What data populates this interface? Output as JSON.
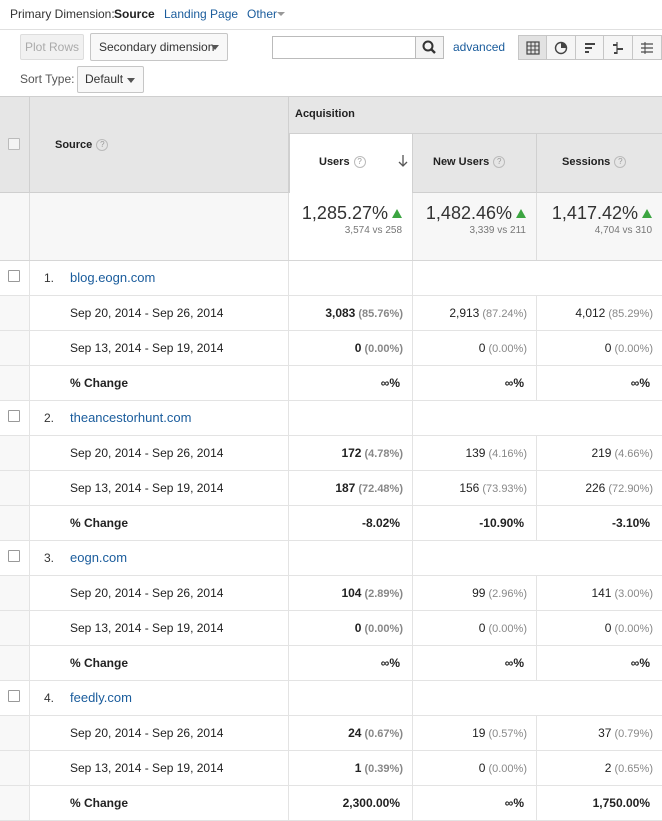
{
  "dimension_bar": {
    "label": "Primary Dimension:",
    "current": "Source",
    "options": [
      "Landing Page",
      "Other"
    ]
  },
  "toolbar": {
    "plot_rows": "Plot Rows",
    "secondary_dimension": "Secondary dimension",
    "search_value": "",
    "advanced": "advanced",
    "sort_type_label": "Sort Type:",
    "sort_type_value": "Default",
    "views": [
      "grid-icon",
      "pie-icon",
      "bar-icon",
      "comparison-icon",
      "pivot-icon"
    ]
  },
  "table": {
    "source_header": "Source",
    "group_header": "Acquisition",
    "columns": [
      "Users",
      "New Users",
      "Sessions"
    ],
    "summary": [
      {
        "pct": "1,285.27%",
        "vs": "3,574 vs 258"
      },
      {
        "pct": "1,482.46%",
        "vs": "3,339 vs 211"
      },
      {
        "pct": "1,417.42%",
        "vs": "4,704 vs 310"
      }
    ],
    "sources": [
      {
        "index": "1.",
        "name": "blog.eogn.com",
        "rows": [
          {
            "label": "Sep 20, 2014 - Sep 26, 2014",
            "values": [
              [
                "3,083",
                "(85.76%)"
              ],
              [
                "2,913",
                "(87.24%)"
              ],
              [
                "4,012",
                "(85.29%)"
              ]
            ]
          },
          {
            "label": "Sep 13, 2014 - Sep 19, 2014",
            "values": [
              [
                "0",
                "(0.00%)"
              ],
              [
                "0",
                "(0.00%)"
              ],
              [
                "0",
                "(0.00%)"
              ]
            ]
          },
          {
            "label": "% Change",
            "values": [
              [
                "∞%",
                ""
              ],
              [
                "∞%",
                ""
              ],
              [
                "∞%",
                ""
              ]
            ]
          }
        ]
      },
      {
        "index": "2.",
        "name": "theancestorhunt.com",
        "rows": [
          {
            "label": "Sep 20, 2014 - Sep 26, 2014",
            "values": [
              [
                "172",
                "(4.78%)"
              ],
              [
                "139",
                "(4.16%)"
              ],
              [
                "219",
                "(4.66%)"
              ]
            ]
          },
          {
            "label": "Sep 13, 2014 - Sep 19, 2014",
            "values": [
              [
                "187",
                "(72.48%)"
              ],
              [
                "156",
                "(73.93%)"
              ],
              [
                "226",
                "(72.90%)"
              ]
            ]
          },
          {
            "label": "% Change",
            "values": [
              [
                "-8.02%",
                ""
              ],
              [
                "-10.90%",
                ""
              ],
              [
                "-3.10%",
                ""
              ]
            ]
          }
        ]
      },
      {
        "index": "3.",
        "name": "eogn.com",
        "rows": [
          {
            "label": "Sep 20, 2014 - Sep 26, 2014",
            "values": [
              [
                "104",
                "(2.89%)"
              ],
              [
                "99",
                "(2.96%)"
              ],
              [
                "141",
                "(3.00%)"
              ]
            ]
          },
          {
            "label": "Sep 13, 2014 - Sep 19, 2014",
            "values": [
              [
                "0",
                "(0.00%)"
              ],
              [
                "0",
                "(0.00%)"
              ],
              [
                "0",
                "(0.00%)"
              ]
            ]
          },
          {
            "label": "% Change",
            "values": [
              [
                "∞%",
                ""
              ],
              [
                "∞%",
                ""
              ],
              [
                "∞%",
                ""
              ]
            ]
          }
        ]
      },
      {
        "index": "4.",
        "name": "feedly.com",
        "rows": [
          {
            "label": "Sep 20, 2014 - Sep 26, 2014",
            "values": [
              [
                "24",
                "(0.67%)"
              ],
              [
                "19",
                "(0.57%)"
              ],
              [
                "37",
                "(0.79%)"
              ]
            ]
          },
          {
            "label": "Sep 13, 2014 - Sep 19, 2014",
            "values": [
              [
                "1",
                "(0.39%)"
              ],
              [
                "0",
                "(0.00%)"
              ],
              [
                "2",
                "(0.65%)"
              ]
            ]
          },
          {
            "label": "% Change",
            "values": [
              [
                "2,300.00%",
                ""
              ],
              [
                "∞%",
                ""
              ],
              [
                "1,750.00%",
                ""
              ]
            ]
          }
        ]
      }
    ]
  },
  "colors": {
    "link": "#1a5c9c",
    "up_arrow": "#3ca541"
  }
}
